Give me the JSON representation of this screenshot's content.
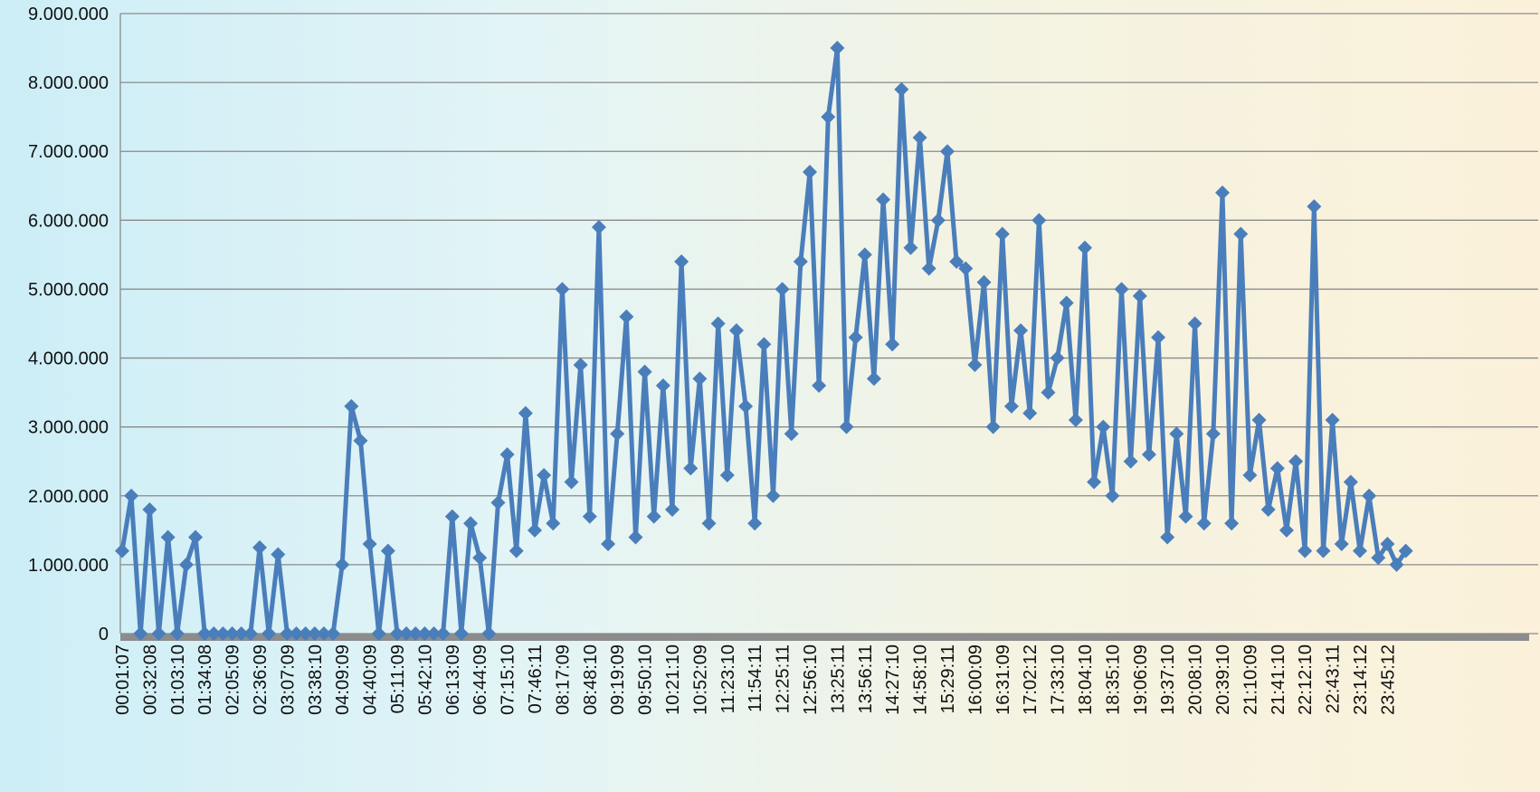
{
  "chart_data": {
    "type": "line",
    "categories": [
      "00:01:07",
      null,
      null,
      "00:32:08",
      null,
      null,
      "01:03:10",
      null,
      null,
      "01:34:08",
      null,
      null,
      "02:05:09",
      null,
      null,
      "02:36:09",
      null,
      null,
      "03:07:09",
      null,
      null,
      "03:38:10",
      null,
      null,
      "04:09:09",
      null,
      null,
      "04:40:09",
      null,
      null,
      "05:11:09",
      null,
      null,
      "05:42:10",
      null,
      null,
      "06:13:09",
      null,
      null,
      "06:44:09",
      null,
      null,
      "07:15:10",
      null,
      null,
      "07:46:11",
      null,
      null,
      "08:17:09",
      null,
      null,
      "08:48:10",
      null,
      null,
      "09:19:09",
      null,
      null,
      "09:50:10",
      null,
      null,
      "10:21:10",
      null,
      null,
      "10:52:09",
      null,
      null,
      "11:23:10",
      null,
      null,
      "11:54:11",
      null,
      null,
      "12:25:11",
      null,
      null,
      "12:56:10",
      null,
      null,
      "13:25:11",
      null,
      null,
      "13:56:11",
      null,
      null,
      "14:27:10",
      null,
      null,
      "14:58:10",
      null,
      null,
      "15:29:11",
      null,
      null,
      "16:00:09",
      null,
      null,
      "16:31:09",
      null,
      null,
      "17:02:12",
      null,
      null,
      "17:33:10",
      null,
      null,
      "18:04:10",
      null,
      null,
      "18:35:10",
      null,
      null,
      "19:06:09",
      null,
      null,
      "19:37:10",
      null,
      null,
      "20:08:10",
      null,
      null,
      "20:39:10",
      null,
      null,
      "21:10:09",
      null,
      null,
      "21:41:10",
      null,
      null,
      "22:12:10",
      null,
      null,
      "22:43:11",
      null,
      null,
      "23:14:12",
      null,
      null,
      "23:45:12",
      null,
      null
    ],
    "values": [
      1200000,
      2000000,
      0,
      1800000,
      0,
      1400000,
      0,
      1000000,
      1400000,
      0,
      0,
      0,
      0,
      0,
      0,
      1250000,
      0,
      1150000,
      0,
      0,
      0,
      0,
      0,
      0,
      1000000,
      3300000,
      2800000,
      1300000,
      0,
      1200000,
      0,
      0,
      0,
      0,
      0,
      0,
      1700000,
      0,
      1600000,
      1100000,
      0,
      1900000,
      2600000,
      1200000,
      3200000,
      1500000,
      2300000,
      1600000,
      5000000,
      2200000,
      3900000,
      1700000,
      5900000,
      1300000,
      2900000,
      4600000,
      1400000,
      3800000,
      1700000,
      3600000,
      1800000,
      5400000,
      2400000,
      3700000,
      1600000,
      4500000,
      2300000,
      4400000,
      3300000,
      1600000,
      4200000,
      2000000,
      5000000,
      2900000,
      5400000,
      6700000,
      3600000,
      7500000,
      8500000,
      3000000,
      4300000,
      5500000,
      3700000,
      6300000,
      4200000,
      7900000,
      5600000,
      7200000,
      5300000,
      6000000,
      7000000,
      5400000,
      5300000,
      3900000,
      5100000,
      3000000,
      5800000,
      3300000,
      4400000,
      3200000,
      6000000,
      3500000,
      4000000,
      4800000,
      3100000,
      5600000,
      2200000,
      3000000,
      2000000,
      5000000,
      2500000,
      4900000,
      2600000,
      4300000,
      1400000,
      2900000,
      1700000,
      4500000,
      1600000,
      2900000,
      6400000,
      1600000,
      5800000,
      2300000,
      3100000,
      1800000,
      2400000,
      1500000,
      2500000,
      1200000,
      6200000,
      1200000,
      3100000,
      1300000,
      2200000,
      1200000,
      2000000,
      1100000,
      1300000,
      1000000,
      1200000
    ],
    "color": "#4a7ebb",
    "ylim": [
      0,
      9000000
    ],
    "yticks": [
      0,
      {
        "value": 1000000,
        "label": "1.000.000"
      },
      {
        "value": 2000000,
        "label": "2.000.000"
      },
      {
        "value": 3000000,
        "label": "3.000.000"
      },
      {
        "value": 4000000,
        "label": "4.000.000"
      },
      {
        "value": 5000000,
        "label": "5.000.000"
      },
      {
        "value": 6000000,
        "label": "6.000.000"
      },
      {
        "value": 7000000,
        "label": "7.000.000"
      },
      {
        "value": 8000000,
        "label": "8.000.000"
      },
      {
        "value": 9000000,
        "label": "9.000.000"
      }
    ],
    "grid": true
  }
}
